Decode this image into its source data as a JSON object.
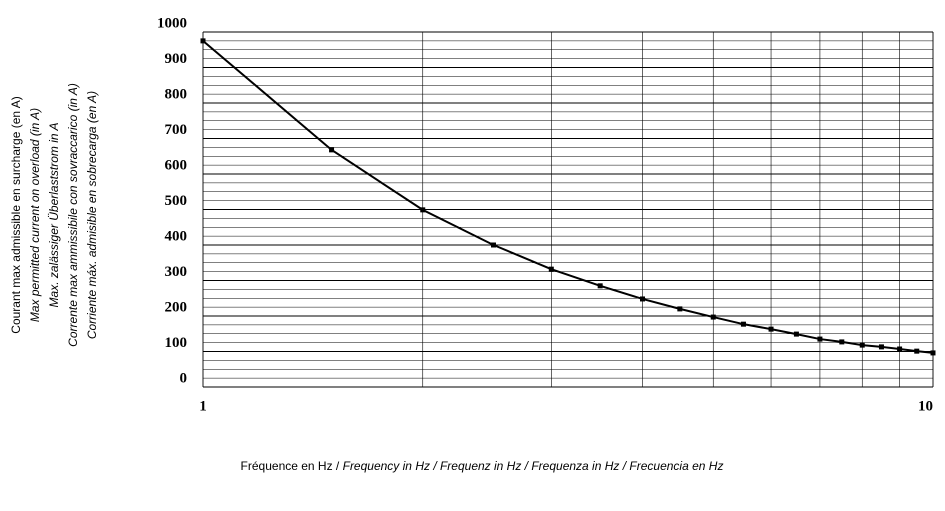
{
  "chart_data": {
    "type": "line",
    "ylabel": [
      "Courant max admissible en surcharge (en A)",
      "Max permitted current on overload  (in A)",
      "Max. zalässiger Überlaststrom in A",
      "Corrente max ammissibile con sovraccarico  (in A)",
      "Corriente  máx. admisible en sobrecarga (en A)"
    ],
    "xlabel": [
      "Fréquence en Hz / ",
      "Frequency in Hz / Frequenz in Hz / Frequenza in Hz / Frecuencia en Hz"
    ],
    "xlog": true,
    "grid": true,
    "xlim": [
      1,
      10
    ],
    "xticks": [
      1,
      10
    ],
    "xminorticks": [
      2,
      3,
      4,
      5,
      6,
      7,
      8,
      9
    ],
    "ylim": [
      0,
      1000
    ],
    "yticks": [
      0,
      100,
      200,
      300,
      400,
      500,
      600,
      700,
      800,
      900,
      1000
    ],
    "yminorticks": [
      25,
      50,
      75,
      125,
      150,
      175,
      225,
      250,
      275,
      325,
      350,
      375,
      425,
      450,
      475,
      525,
      550,
      575,
      625,
      650,
      675,
      725,
      750,
      775,
      825,
      850,
      875,
      925,
      950,
      975
    ],
    "x": [
      1,
      1.5,
      2,
      2.5,
      3,
      3.5,
      4,
      4.5,
      5,
      5.5,
      6,
      6.5,
      7,
      7.5,
      8,
      8.5,
      9,
      9.5,
      10
    ],
    "series": [
      {
        "color": "#000000",
        "values": [
          975,
          668,
          499,
          400,
          332,
          285,
          248,
          220,
          197,
          177,
          163,
          149,
          135,
          127,
          118,
          113,
          107,
          101,
          96
        ]
      }
    ]
  }
}
